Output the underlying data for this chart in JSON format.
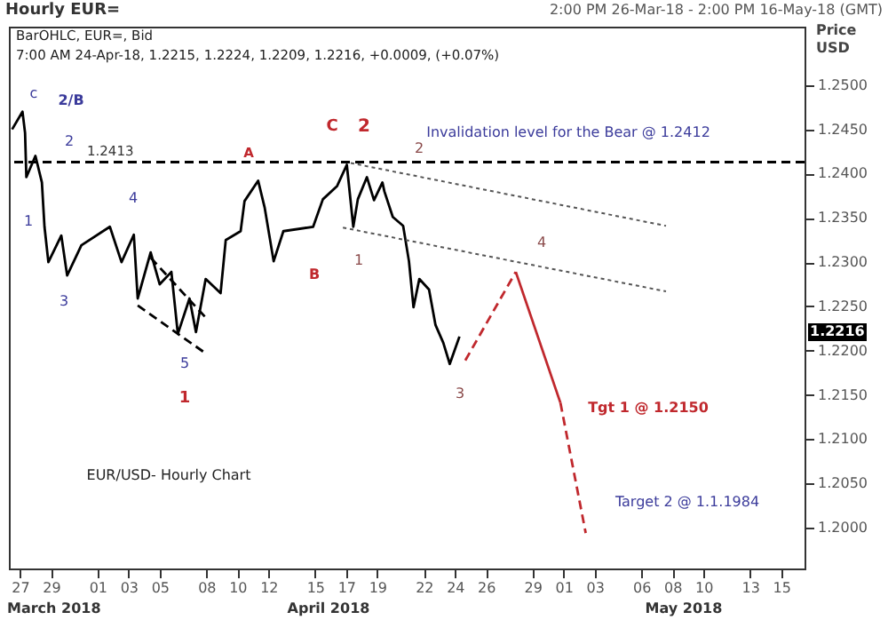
{
  "chart_data": {
    "type": "line",
    "title": "Hourly EUR=",
    "subtitle": "2:00 PM 26-Mar-18 - 2:00 PM 16-May-18 (GMT)",
    "ylabel": "Price USD",
    "xlim": [
      "2018-03-26T07:00",
      "2018-05-16T12:00"
    ],
    "xticks": [
      {
        "value": "2018-03-27",
        "label": "27"
      },
      {
        "value": "2018-03-29",
        "label": "29"
      },
      {
        "value": "2018-04-01",
        "label": "01"
      },
      {
        "value": "2018-04-03",
        "label": "03"
      },
      {
        "value": "2018-04-05",
        "label": "05"
      },
      {
        "value": "2018-04-08",
        "label": "08"
      },
      {
        "value": "2018-04-10",
        "label": "10"
      },
      {
        "value": "2018-04-12",
        "label": "12"
      },
      {
        "value": "2018-04-15",
        "label": "15"
      },
      {
        "value": "2018-04-17",
        "label": "17"
      },
      {
        "value": "2018-04-19",
        "label": "19"
      },
      {
        "value": "2018-04-22",
        "label": "22"
      },
      {
        "value": "2018-04-24",
        "label": "24"
      },
      {
        "value": "2018-04-26",
        "label": "26"
      },
      {
        "value": "2018-04-29",
        "label": "29"
      },
      {
        "value": "2018-05-01",
        "label": "01"
      },
      {
        "value": "2018-05-03",
        "label": "03"
      },
      {
        "value": "2018-05-06",
        "label": "06"
      },
      {
        "value": "2018-05-08",
        "label": "08"
      },
      {
        "value": "2018-05-10",
        "label": "10"
      },
      {
        "value": "2018-05-13",
        "label": "13"
      },
      {
        "value": "2018-05-15",
        "label": "15"
      }
    ],
    "ylim": [
      1.1954,
      1.2566
    ],
    "yticks": [
      {
        "value": 1.2,
        "label": "1.2000"
      },
      {
        "value": 1.205,
        "label": "1.2050"
      },
      {
        "value": 1.21,
        "label": "1.2100"
      },
      {
        "value": 1.215,
        "label": "1.2150"
      },
      {
        "value": 1.22,
        "label": "1.2200"
      },
      {
        "value": 1.225,
        "label": "1.2250"
      },
      {
        "value": 1.23,
        "label": "1.2300"
      },
      {
        "value": 1.235,
        "label": "1.2350"
      },
      {
        "value": 1.24,
        "label": "1.2400"
      },
      {
        "value": 1.245,
        "label": "1.2450"
      },
      {
        "value": 1.25,
        "label": "1.2500"
      }
    ],
    "series": [
      {
        "color": "#000000",
        "line_style": "solid",
        "x": [
          "2018-03-26T12:00",
          "2018-03-27T04:00",
          "2018-03-27T08:00",
          "2018-03-27T10:00",
          "2018-03-28T00:00",
          "2018-03-28T10:00",
          "2018-03-28T14:00",
          "2018-03-28T20:00",
          "2018-03-29T16:00",
          "2018-03-30T01:00",
          "2018-03-30T23:00",
          "2018-04-01T19:00",
          "2018-04-02T13:00",
          "2018-04-03T08:00",
          "2018-04-03T14:00",
          "2018-04-04T10:00",
          "2018-04-05T00:00",
          "2018-04-05T18:00",
          "2018-04-06T04:00",
          "2018-04-06T22:00",
          "2018-04-07T08:00",
          "2018-04-07T23:00",
          "2018-04-08T22:00",
          "2018-04-09T06:00",
          "2018-04-10T05:00",
          "2018-04-10T11:00",
          "2018-04-11T08:00",
          "2018-04-11T18:00",
          "2018-04-12T08:00",
          "2018-04-12T23:00",
          "2018-04-14T21:00",
          "2018-04-15T12:00",
          "2018-04-16T10:00",
          "2018-04-17T01:00",
          "2018-04-17T11:00",
          "2018-04-17T18:00",
          "2018-04-18T08:00",
          "2018-04-18T19:00",
          "2018-04-19T08:00",
          "2018-04-19T11:00",
          "2018-04-20T00:00",
          "2018-04-20T16:00",
          "2018-04-21T01:00",
          "2018-04-21T08:00",
          "2018-04-21T17:00",
          "2018-04-22T08:00",
          "2018-04-22T18:00",
          "2018-04-23T06:00",
          "2018-04-23T16:00",
          "2018-04-24T07:00"
        ],
        "values": [
          1.245,
          1.247,
          1.2446,
          1.2396,
          1.242,
          1.239,
          1.234,
          1.23,
          1.233,
          1.2285,
          1.2319,
          1.234,
          1.23,
          1.2331,
          1.2259,
          1.2311,
          1.2275,
          1.2289,
          1.2219,
          1.2259,
          1.2221,
          1.2281,
          1.2265,
          1.2325,
          1.2335,
          1.2369,
          1.2392,
          1.2362,
          1.2301,
          1.2335,
          1.234,
          1.2371,
          1.2386,
          1.241,
          1.234,
          1.2371,
          1.2396,
          1.237,
          1.239,
          1.238,
          1.2351,
          1.2341,
          1.2301,
          1.2249,
          1.2281,
          1.2269,
          1.2229,
          1.2209,
          1.2185,
          1.2216
        ]
      },
      {
        "color": "#c0282d",
        "line_style": "dashed",
        "x": [
          "2018-04-24T16:00",
          "2018-04-27T22:00"
        ],
        "values": [
          1.2189,
          1.2289
        ]
      },
      {
        "color": "#c0282d",
        "line_style": "solid",
        "x": [
          "2018-04-27T22:00",
          "2018-04-30T19:00"
        ],
        "values": [
          1.2289,
          1.2141
        ]
      },
      {
        "color": "#c0282d",
        "line_style": "dashed",
        "x": [
          "2018-04-30T19:00",
          "2018-05-02T10:00"
        ],
        "values": [
          1.2141,
          1.1994
        ]
      },
      {
        "color": "#555555",
        "line_style": "dotted",
        "x": [
          "2018-04-17T07:00",
          "2018-05-07T14:00"
        ],
        "values": [
          1.2412,
          1.2341
        ]
      },
      {
        "color": "#555555",
        "line_style": "dotted",
        "x": [
          "2018-04-16T19:00",
          "2018-05-07T14:00"
        ],
        "values": [
          1.2339,
          1.2267
        ]
      },
      {
        "color": "#000000",
        "line_style": "dashed",
        "x": [
          "2018-04-03T14:00",
          "2018-04-07T23:00"
        ],
        "values": [
          1.2251,
          1.2197
        ]
      },
      {
        "color": "#000000",
        "line_style": "dashed",
        "x": [
          "2018-04-04T10:00",
          "2018-04-08T02:00"
        ],
        "values": [
          1.2305,
          1.2235
        ]
      }
    ],
    "ref_lines": [
      {
        "axis": "y",
        "value": 1.2413,
        "label": "1.2413",
        "color": "#000000",
        "line_style": "dashed"
      }
    ],
    "annotations": [
      "BarOHLC, EUR=, Bid",
      "7:00 AM 24-Apr-18, 1.2215, 1.2224, 1.2209, 1.2216, +0.0009, (+0.07%)",
      "Invalidation level for the Bear @ 1.2412",
      "Tgt 1 @ 1.2150",
      "Target 2 @ 1.1.1984",
      "EUR/USD- Hourly Chart",
      "c",
      "2/B",
      "2",
      "1",
      "4",
      "3",
      "5",
      "1",
      "A",
      "C",
      "2",
      "2",
      "B",
      "1",
      "4",
      "3",
      "March 2018",
      "April 2018",
      "May 2018",
      "1.2216"
    ]
  }
}
